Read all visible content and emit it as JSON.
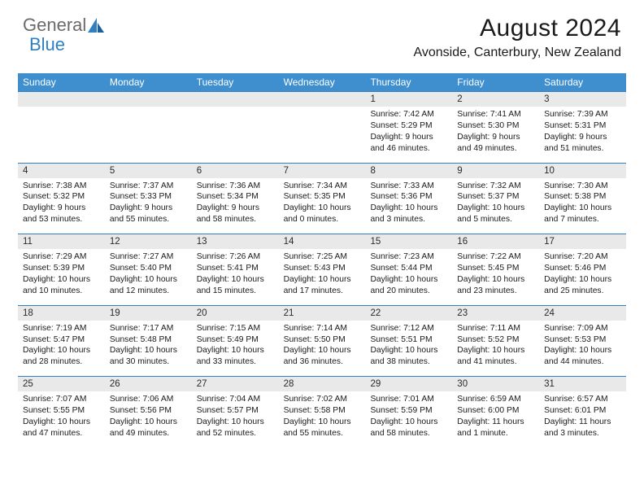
{
  "logo": {
    "text1": "General",
    "text2": "Blue"
  },
  "title": "August 2024",
  "location": "Avonside, Canterbury, New Zealand",
  "colors": {
    "header_bg": "#3f8fcf",
    "header_text": "#ffffff",
    "daterow_bg": "#e9e9e9",
    "border": "#2f7fc2",
    "body_text": "#1a1a1a",
    "logo_gray": "#6b6b6b",
    "logo_blue": "#2f7fc2"
  },
  "typography": {
    "title_fontsize": 30,
    "location_fontsize": 16,
    "weekday_fontsize": 12,
    "date_fontsize": 11.5,
    "detail_fontsize": 10.3
  },
  "weekdays": [
    "Sunday",
    "Monday",
    "Tuesday",
    "Wednesday",
    "Thursday",
    "Friday",
    "Saturday"
  ],
  "weeks": [
    {
      "dates": [
        "",
        "",
        "",
        "",
        "1",
        "2",
        "3"
      ],
      "details": [
        "",
        "",
        "",
        "",
        "Sunrise: 7:42 AM\nSunset: 5:29 PM\nDaylight: 9 hours\nand 46 minutes.",
        "Sunrise: 7:41 AM\nSunset: 5:30 PM\nDaylight: 9 hours\nand 49 minutes.",
        "Sunrise: 7:39 AM\nSunset: 5:31 PM\nDaylight: 9 hours\nand 51 minutes."
      ]
    },
    {
      "dates": [
        "4",
        "5",
        "6",
        "7",
        "8",
        "9",
        "10"
      ],
      "details": [
        "Sunrise: 7:38 AM\nSunset: 5:32 PM\nDaylight: 9 hours\nand 53 minutes.",
        "Sunrise: 7:37 AM\nSunset: 5:33 PM\nDaylight: 9 hours\nand 55 minutes.",
        "Sunrise: 7:36 AM\nSunset: 5:34 PM\nDaylight: 9 hours\nand 58 minutes.",
        "Sunrise: 7:34 AM\nSunset: 5:35 PM\nDaylight: 10 hours\nand 0 minutes.",
        "Sunrise: 7:33 AM\nSunset: 5:36 PM\nDaylight: 10 hours\nand 3 minutes.",
        "Sunrise: 7:32 AM\nSunset: 5:37 PM\nDaylight: 10 hours\nand 5 minutes.",
        "Sunrise: 7:30 AM\nSunset: 5:38 PM\nDaylight: 10 hours\nand 7 minutes."
      ]
    },
    {
      "dates": [
        "11",
        "12",
        "13",
        "14",
        "15",
        "16",
        "17"
      ],
      "details": [
        "Sunrise: 7:29 AM\nSunset: 5:39 PM\nDaylight: 10 hours\nand 10 minutes.",
        "Sunrise: 7:27 AM\nSunset: 5:40 PM\nDaylight: 10 hours\nand 12 minutes.",
        "Sunrise: 7:26 AM\nSunset: 5:41 PM\nDaylight: 10 hours\nand 15 minutes.",
        "Sunrise: 7:25 AM\nSunset: 5:43 PM\nDaylight: 10 hours\nand 17 minutes.",
        "Sunrise: 7:23 AM\nSunset: 5:44 PM\nDaylight: 10 hours\nand 20 minutes.",
        "Sunrise: 7:22 AM\nSunset: 5:45 PM\nDaylight: 10 hours\nand 23 minutes.",
        "Sunrise: 7:20 AM\nSunset: 5:46 PM\nDaylight: 10 hours\nand 25 minutes."
      ]
    },
    {
      "dates": [
        "18",
        "19",
        "20",
        "21",
        "22",
        "23",
        "24"
      ],
      "details": [
        "Sunrise: 7:19 AM\nSunset: 5:47 PM\nDaylight: 10 hours\nand 28 minutes.",
        "Sunrise: 7:17 AM\nSunset: 5:48 PM\nDaylight: 10 hours\nand 30 minutes.",
        "Sunrise: 7:15 AM\nSunset: 5:49 PM\nDaylight: 10 hours\nand 33 minutes.",
        "Sunrise: 7:14 AM\nSunset: 5:50 PM\nDaylight: 10 hours\nand 36 minutes.",
        "Sunrise: 7:12 AM\nSunset: 5:51 PM\nDaylight: 10 hours\nand 38 minutes.",
        "Sunrise: 7:11 AM\nSunset: 5:52 PM\nDaylight: 10 hours\nand 41 minutes.",
        "Sunrise: 7:09 AM\nSunset: 5:53 PM\nDaylight: 10 hours\nand 44 minutes."
      ]
    },
    {
      "dates": [
        "25",
        "26",
        "27",
        "28",
        "29",
        "30",
        "31"
      ],
      "details": [
        "Sunrise: 7:07 AM\nSunset: 5:55 PM\nDaylight: 10 hours\nand 47 minutes.",
        "Sunrise: 7:06 AM\nSunset: 5:56 PM\nDaylight: 10 hours\nand 49 minutes.",
        "Sunrise: 7:04 AM\nSunset: 5:57 PM\nDaylight: 10 hours\nand 52 minutes.",
        "Sunrise: 7:02 AM\nSunset: 5:58 PM\nDaylight: 10 hours\nand 55 minutes.",
        "Sunrise: 7:01 AM\nSunset: 5:59 PM\nDaylight: 10 hours\nand 58 minutes.",
        "Sunrise: 6:59 AM\nSunset: 6:00 PM\nDaylight: 11 hours\nand 1 minute.",
        "Sunrise: 6:57 AM\nSunset: 6:01 PM\nDaylight: 11 hours\nand 3 minutes."
      ]
    }
  ]
}
